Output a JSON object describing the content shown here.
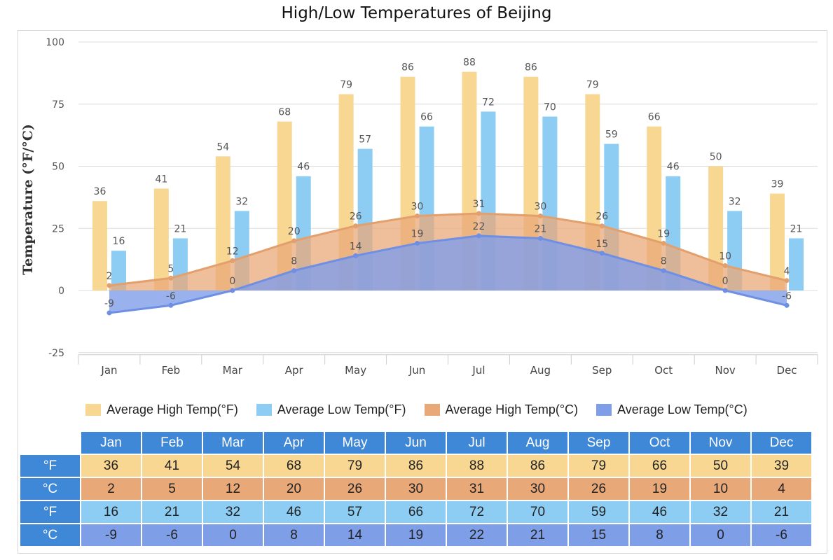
{
  "title": "High/Low Temperatures of Beijing",
  "colors": {
    "high_f": "#f8d793",
    "low_f": "#8ecdf3",
    "high_c": "#e9a878",
    "low_c": "#7f9ee8",
    "header": "#3f88d8"
  },
  "legend": [
    {
      "label": "Average High Temp(°F)",
      "color": "#f8d793"
    },
    {
      "label": "Average Low Temp(°F)",
      "color": "#8ecdf3"
    },
    {
      "label": "Average High Temp(°C)",
      "color": "#e9a878"
    },
    {
      "label": "Average Low Temp(°C)",
      "color": "#7f9ee8"
    }
  ],
  "chart_data": {
    "type": "bar",
    "title": "High/Low Temperatures of Beijing",
    "ylabel": "Temperature (°F/°C)",
    "xlabel": "",
    "ylim": [
      -25,
      100
    ],
    "yticks": [
      -25,
      0,
      25,
      50,
      75,
      100
    ],
    "grid": true,
    "legend_position": "bottom",
    "categories": [
      "Jan",
      "Feb",
      "Mar",
      "Apr",
      "May",
      "Jun",
      "Jul",
      "Aug",
      "Sep",
      "Oct",
      "Nov",
      "Dec"
    ],
    "series": [
      {
        "name": "Average High Temp(°F)",
        "type": "bar",
        "values": [
          36,
          41,
          54,
          68,
          79,
          86,
          88,
          86,
          79,
          66,
          50,
          39
        ]
      },
      {
        "name": "Average Low Temp(°F)",
        "type": "bar",
        "values": [
          16,
          21,
          32,
          46,
          57,
          66,
          72,
          70,
          59,
          46,
          32,
          21
        ]
      },
      {
        "name": "Average High Temp(°C)",
        "type": "area",
        "values": [
          2,
          5,
          12,
          20,
          26,
          30,
          31,
          30,
          26,
          19,
          10,
          4
        ]
      },
      {
        "name": "Average Low Temp(°C)",
        "type": "area",
        "values": [
          -9,
          -6,
          0,
          8,
          14,
          19,
          22,
          21,
          15,
          8,
          0,
          -6
        ]
      }
    ]
  },
  "table": {
    "months": [
      "Jan",
      "Feb",
      "Mar",
      "Apr",
      "May",
      "Jun",
      "Jul",
      "Aug",
      "Sep",
      "Oct",
      "Nov",
      "Dec"
    ],
    "rows": [
      {
        "label": "°F",
        "values": [
          "36",
          "41",
          "54",
          "68",
          "79",
          "86",
          "88",
          "86",
          "79",
          "66",
          "50",
          "39"
        ],
        "color": "#f8d793"
      },
      {
        "label": "°C",
        "values": [
          "2",
          "5",
          "12",
          "20",
          "26",
          "30",
          "31",
          "30",
          "26",
          "19",
          "10",
          "4"
        ],
        "color": "#e9a878"
      },
      {
        "label": "°F",
        "values": [
          "16",
          "21",
          "32",
          "46",
          "57",
          "66",
          "72",
          "70",
          "59",
          "46",
          "32",
          "21"
        ],
        "color": "#8ecdf3"
      },
      {
        "label": "°C",
        "values": [
          "-9",
          "-6",
          "0",
          "8",
          "14",
          "19",
          "22",
          "21",
          "15",
          "8",
          "0",
          "-6"
        ],
        "color": "#7f9ee8"
      }
    ]
  }
}
